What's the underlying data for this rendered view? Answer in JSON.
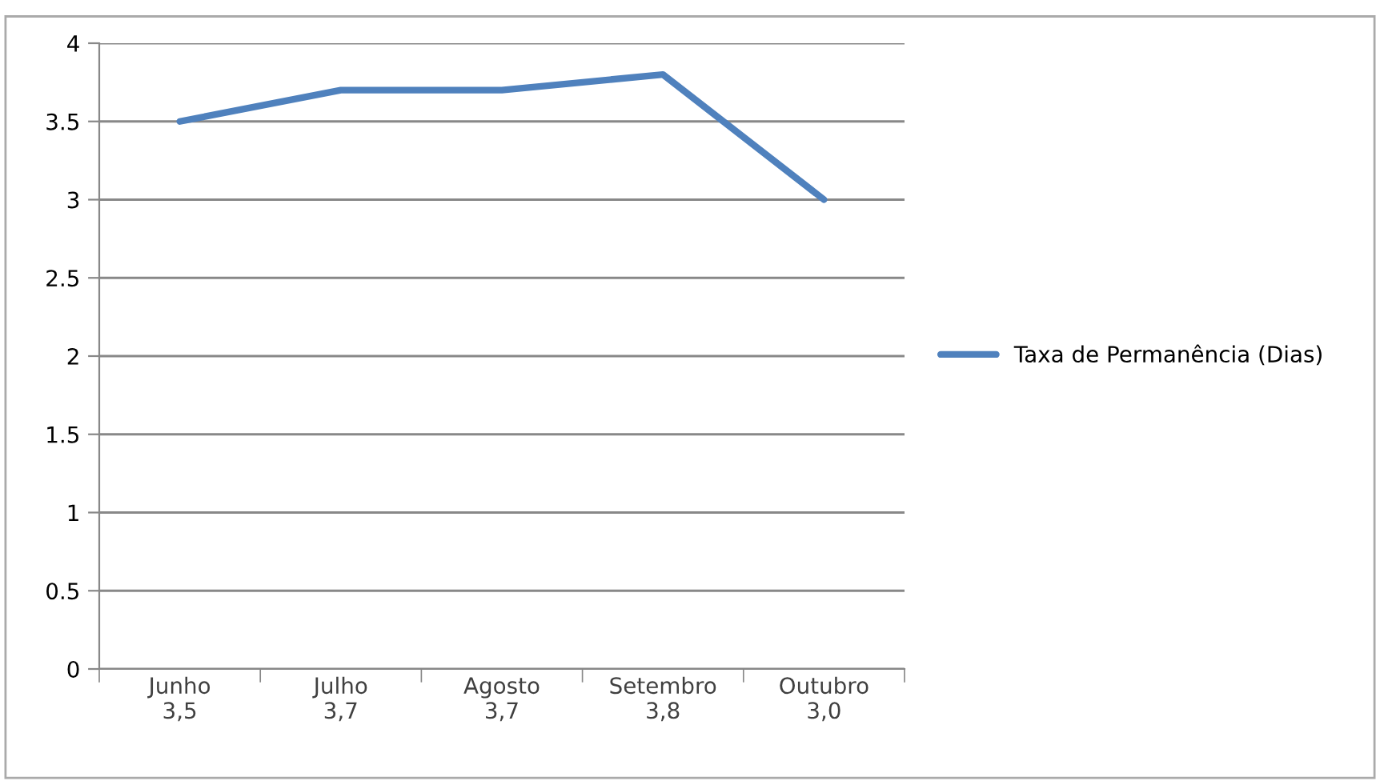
{
  "chart_data": {
    "type": "line",
    "categories": [
      "Junho\n3,5",
      "Julho\n3,7",
      "Agosto\n3,7",
      "Setembro\n3,8",
      "Outubro\n3,0"
    ],
    "series": [
      {
        "name": "Taxa de Permanência (Dias)",
        "color": "#4f81bd",
        "values": [
          3.5,
          3.7,
          3.7,
          3.8,
          3.0
        ]
      }
    ],
    "ylim": [
      0,
      4
    ],
    "yticks": [
      0,
      0.5,
      1,
      1.5,
      2,
      2.5,
      3,
      3.5,
      4
    ],
    "grid": "y",
    "legend": "right",
    "marker": "none",
    "line_style": "solid"
  }
}
